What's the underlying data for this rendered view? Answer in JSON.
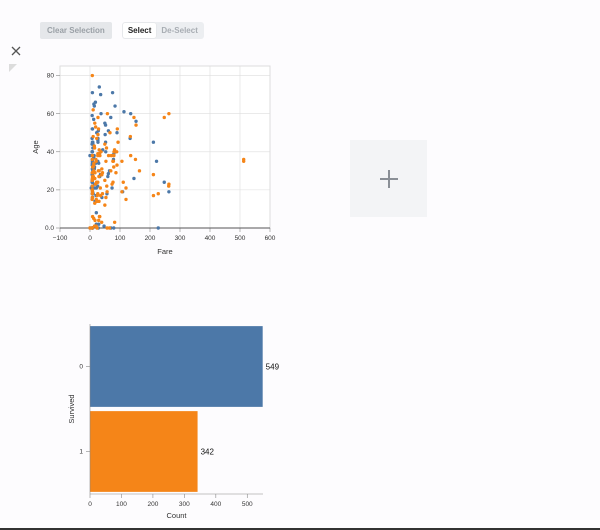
{
  "toolbar": {
    "clear_label": "Clear Selection",
    "select_label": "Select",
    "deselect_label": "De-Select",
    "active_mode": "Select"
  },
  "icons": {
    "close": "close-icon",
    "add": "plus-icon"
  },
  "colors": {
    "survived_0": "#4c78a8",
    "survived_1": "#f58518",
    "grid": "#dddddd",
    "axis": "#888888"
  },
  "chart_data": [
    {
      "type": "scatter",
      "xlabel": "Fare",
      "ylabel": "Age",
      "xlim": [
        -100,
        600
      ],
      "ylim": [
        0,
        85
      ],
      "x_ticks": [
        "−100",
        "0",
        "100",
        "200",
        "300",
        "400",
        "500",
        "600"
      ],
      "y_ticks": [
        "0.0",
        "20",
        "40",
        "60",
        "80"
      ],
      "grid": true,
      "series": [
        {
          "name": "0",
          "points": [
            [
              7.25,
              22
            ],
            [
              8.05,
              35
            ],
            [
              8.46,
              0
            ],
            [
              51.86,
              54
            ],
            [
              21.08,
              2
            ],
            [
              8.05,
              20
            ],
            [
              31.28,
              39
            ],
            [
              16.7,
              14
            ],
            [
              29.13,
              2
            ],
            [
              7.9,
              31
            ],
            [
              26,
              35
            ],
            [
              21.08,
              8
            ],
            [
              27.9,
              0
            ],
            [
              8.66,
              19
            ],
            [
              7.75,
              40
            ],
            [
              18,
              66
            ],
            [
              7.22,
              28
            ],
            [
              9.47,
              42
            ],
            [
              21,
              21
            ],
            [
              7.9,
              18
            ],
            [
              8.03,
              40
            ],
            [
              7.88,
              0
            ],
            [
              13,
              65
            ],
            [
              61.17,
              28.5
            ],
            [
              7.23,
              0
            ],
            [
              13,
              26
            ],
            [
              247.52,
              24
            ],
            [
              7.75,
              0
            ],
            [
              7.9,
              22
            ],
            [
              46.9,
              1
            ],
            [
              263,
              19
            ],
            [
              15.85,
              23
            ],
            [
              9.35,
              30
            ],
            [
              7.05,
              47
            ],
            [
              52,
              45
            ],
            [
              79.2,
              0
            ],
            [
              69.55,
              0
            ],
            [
              83.48,
              64
            ],
            [
              26.55,
              45
            ],
            [
              10.5,
              33
            ],
            [
              14.45,
              31
            ],
            [
              7.73,
              0
            ],
            [
              211.34,
              45
            ],
            [
              7.93,
              28
            ],
            [
              8.16,
              45
            ],
            [
              34.65,
              28
            ],
            [
              15.5,
              21
            ],
            [
              227.53,
              0
            ],
            [
              73.5,
              21
            ],
            [
              113.28,
              61
            ],
            [
              133.65,
              47
            ],
            [
              7.23,
              24
            ],
            [
              56.5,
              18
            ],
            [
              13.79,
              38
            ],
            [
              0,
              0
            ],
            [
              12.29,
              57
            ],
            [
              7.8,
              24
            ],
            [
              8.05,
              71
            ],
            [
              35.5,
              70
            ],
            [
              7.9,
              38
            ],
            [
              6.97,
              40
            ],
            [
              29,
              34
            ],
            [
              146.52,
              26
            ],
            [
              39.69,
              16
            ],
            [
              7.92,
              18
            ],
            [
              61.38,
              51
            ],
            [
              90,
              50
            ],
            [
              49.5,
              55
            ],
            [
              78.27,
              36
            ],
            [
              8.43,
              52
            ],
            [
              9.84,
              44
            ],
            [
              52.55,
              40
            ],
            [
              26.29,
              46
            ],
            [
              69.3,
              58
            ],
            [
              7.5,
              33
            ],
            [
              20.21,
              17
            ],
            [
              31,
              74
            ],
            [
              7.05,
              44
            ],
            [
              14.45,
              64
            ],
            [
              50.5,
              49
            ],
            [
              9.5,
              45
            ],
            [
              7.78,
              25
            ],
            [
              108.9,
              19
            ],
            [
              25.47,
              22
            ],
            [
              18.75,
              34
            ],
            [
              7.25,
              59
            ],
            [
              15.1,
              32
            ],
            [
              36.75,
              60
            ],
            [
              153.46,
              56
            ],
            [
              26.55,
              47
            ],
            [
              7.83,
              36
            ],
            [
              75.25,
              71
            ],
            [
              221.78,
              35
            ],
            [
              8.66,
              16
            ],
            [
              42.4,
              41
            ],
            [
              27.72,
              51
            ],
            [
              12.48,
              37
            ],
            [
              135.63,
              60
            ],
            [
              4.01,
              21
            ],
            [
              10.46,
              29
            ],
            [
              0,
              38
            ],
            [
              32.5,
              27
            ],
            [
              7.85,
              34
            ],
            [
              22.36,
              50
            ],
            [
              79.65,
              39
            ],
            [
              10.5,
              18
            ],
            [
              59.4,
              27
            ],
            [
              7.75,
              52
            ],
            [
              65,
              30
            ]
          ]
        },
        {
          "name": "1",
          "points": [
            [
              71.28,
              38
            ],
            [
              7.93,
              26
            ],
            [
              53.1,
              35
            ],
            [
              11.13,
              27
            ],
            [
              30.07,
              14
            ],
            [
              16.7,
              4
            ],
            [
              26.55,
              58
            ],
            [
              16,
              55
            ],
            [
              13,
              34
            ],
            [
              7.23,
              15
            ],
            [
              8.03,
              38
            ],
            [
              146.52,
              58
            ],
            [
              7.23,
              0
            ],
            [
              82.17,
              3
            ],
            [
              30.5,
              30
            ],
            [
              263,
              23
            ],
            [
              76.73,
              24
            ],
            [
              22.02,
              24
            ],
            [
              93.5,
              45
            ],
            [
              76.29,
              35
            ],
            [
              80,
              40
            ],
            [
              35.5,
              17
            ],
            [
              512.33,
              36
            ],
            [
              512.33,
              35
            ],
            [
              26,
              38
            ],
            [
              134.5,
              48
            ],
            [
              110.88,
              24
            ],
            [
              91.08,
              52
            ],
            [
              247.52,
              58
            ],
            [
              77.96,
              35
            ],
            [
              120,
              15
            ],
            [
              164.87,
              30
            ],
            [
              211.34,
              28
            ],
            [
              227.53,
              18
            ],
            [
              135.63,
              38
            ],
            [
              57,
              19
            ],
            [
              263,
              60
            ],
            [
              29,
              4
            ],
            [
              20.25,
              1
            ],
            [
              16.7,
              29
            ],
            [
              151.55,
              36
            ],
            [
              39,
              28
            ],
            [
              12.48,
              30
            ],
            [
              28.5,
              52
            ],
            [
              83.16,
              40
            ],
            [
              39.6,
              28
            ],
            [
              55.9,
              22
            ],
            [
              86.5,
              29
            ],
            [
              26,
              24
            ],
            [
              153.46,
              54
            ],
            [
              262.38,
              22
            ],
            [
              69.3,
              30
            ],
            [
              10.5,
              62
            ],
            [
              49.5,
              44
            ],
            [
              10.5,
              32
            ],
            [
              79.2,
              32
            ],
            [
              39,
              3
            ],
            [
              89.1,
              40
            ],
            [
              41.58,
              18
            ],
            [
              7.75,
              20
            ],
            [
              26.55,
              49
            ],
            [
              49.5,
              12
            ],
            [
              7.75,
              80
            ],
            [
              57.98,
              60
            ],
            [
              211.5,
              17
            ],
            [
              7.55,
              25
            ],
            [
              12.35,
              5
            ],
            [
              30.7,
              41
            ],
            [
              7.74,
              36
            ],
            [
              15.25,
              1
            ],
            [
              22.36,
              47
            ],
            [
              31.39,
              6
            ],
            [
              8.05,
              29
            ],
            [
              24.15,
              17
            ],
            [
              12.64,
              33
            ],
            [
              7.83,
              29
            ],
            [
              8.52,
              27
            ],
            [
              66.6,
              50
            ],
            [
              20.58,
              35
            ],
            [
              7.93,
              22
            ],
            [
              19.5,
              36
            ],
            [
              34.38,
              21
            ],
            [
              7.65,
              25
            ],
            [
              41.58,
              29
            ],
            [
              57,
              0
            ],
            [
              15.9,
              13
            ],
            [
              7.13,
              0
            ],
            [
              10.5,
              48
            ],
            [
              15.25,
              42
            ],
            [
              31,
              39
            ],
            [
              14.45,
              43
            ],
            [
              7.78,
              16
            ],
            [
              79.65,
              38
            ],
            [
              8.05,
              19
            ],
            [
              13.42,
              26
            ],
            [
              33,
              38
            ],
            [
              26,
              18
            ],
            [
              0,
              0
            ],
            [
              14.5,
              29
            ],
            [
              21,
              15
            ],
            [
              49.5,
              25
            ],
            [
              27.9,
              30
            ],
            [
              36.75,
              40
            ],
            [
              23,
              14
            ],
            [
              9.59,
              27
            ],
            [
              53.1,
              16
            ],
            [
              61.98,
              38
            ],
            [
              106.43,
              35
            ],
            [
              18.75,
              23
            ],
            [
              55,
              42
            ],
            [
              7.92,
              18
            ],
            [
              29.7,
              27
            ],
            [
              23.45,
              0
            ],
            [
              39.4,
              31
            ],
            [
              81.86,
              41
            ],
            [
              18.75,
              53
            ],
            [
              16.1,
              26
            ],
            [
              65,
              0
            ],
            [
              32.5,
              6
            ],
            [
              7.78,
              20
            ],
            [
              26.25,
              39
            ],
            [
              106.43,
              19
            ],
            [
              90,
              33
            ],
            [
              73.5,
              23
            ],
            [
              120,
              21
            ],
            [
              8.85,
              32
            ],
            [
              8.66,
              6
            ]
          ]
        }
      ]
    },
    {
      "type": "bar",
      "orientation": "horizontal",
      "xlabel": "Count",
      "ylabel": "Survived",
      "categories": [
        "0",
        "1"
      ],
      "values": [
        549,
        342
      ],
      "data_labels": [
        "549",
        "342"
      ],
      "xlim": [
        0,
        550
      ],
      "x_ticks": [
        "0",
        "100",
        "200",
        "300",
        "400",
        "500"
      ],
      "grid": false
    }
  ]
}
